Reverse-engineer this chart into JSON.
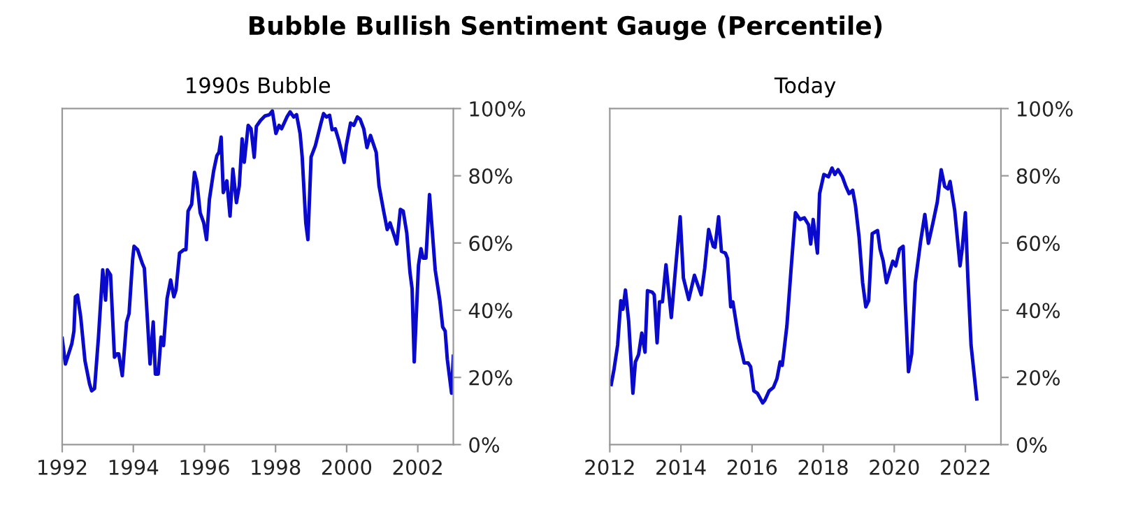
{
  "chart_data": [
    {
      "type": "line",
      "title": "Bubble Bullish Sentiment Gauge (Percentile)",
      "subtitle": "1990s Bubble",
      "xlim": [
        1992,
        2003
      ],
      "xticks": [
        1992,
        1994,
        1996,
        1998,
        2000,
        2002
      ],
      "ylim": [
        0,
        100
      ],
      "yticks": [
        {
          "value": 0,
          "label": "0%"
        },
        {
          "value": 20,
          "label": "20%"
        },
        {
          "value": 40,
          "label": "40%"
        },
        {
          "value": 60,
          "label": "60%"
        },
        {
          "value": 80,
          "label": "80%"
        },
        {
          "value": 100,
          "label": "100%"
        }
      ],
      "grid": false,
      "marker": "none",
      "line_style": "solid",
      "series": [
        {
          "color": "#0a0acc",
          "x": [
            1992.0,
            1992.09,
            1992.27,
            1992.33,
            1992.37,
            1992.43,
            1992.52,
            1992.64,
            1992.77,
            1992.83,
            1992.91,
            1993.02,
            1993.14,
            1993.22,
            1993.27,
            1993.36,
            1993.47,
            1993.54,
            1993.59,
            1993.69,
            1993.81,
            1993.88,
            1993.98,
            1994.02,
            1994.12,
            1994.25,
            1994.31,
            1994.37,
            1994.47,
            1994.56,
            1994.62,
            1994.7,
            1994.78,
            1994.85,
            1994.95,
            1995.05,
            1995.14,
            1995.2,
            1995.3,
            1995.42,
            1995.48,
            1995.54,
            1995.64,
            1995.72,
            1995.79,
            1995.88,
            1995.98,
            1996.06,
            1996.14,
            1996.26,
            1996.35,
            1996.41,
            1996.47,
            1996.53,
            1996.63,
            1996.72,
            1996.8,
            1996.9,
            1996.98,
            1997.06,
            1997.12,
            1997.23,
            1997.31,
            1997.4,
            1997.46,
            1997.58,
            1997.7,
            1997.83,
            1997.91,
            1998.01,
            1998.1,
            1998.17,
            1998.32,
            1998.41,
            1998.51,
            1998.59,
            1998.69,
            1998.75,
            1998.85,
            1998.91,
            1999.0,
            1999.12,
            1999.27,
            1999.35,
            1999.43,
            1999.52,
            1999.59,
            1999.68,
            1999.78,
            1999.93,
            1999.99,
            2000.11,
            2000.2,
            2000.3,
            2000.38,
            2000.48,
            2000.57,
            2000.67,
            2000.83,
            2000.91,
            2001.04,
            2001.14,
            2001.22,
            2001.35,
            2001.41,
            2001.51,
            2001.59,
            2001.69,
            2001.78,
            2001.84,
            2001.9,
            2002.02,
            2002.09,
            2002.15,
            2002.23,
            2002.33,
            2002.49,
            2002.62,
            2002.7,
            2002.77,
            2002.83,
            2002.95,
            2003.0
          ],
          "values": [
            31.6,
            24,
            30,
            33.8,
            44,
            44.5,
            38,
            25,
            18,
            16,
            16.7,
            32,
            52,
            43,
            52,
            50.5,
            26,
            27,
            27,
            20.5,
            36.5,
            39,
            55,
            59,
            58,
            54,
            52.5,
            42,
            24,
            36.5,
            21,
            21,
            32,
            29.5,
            43.5,
            49,
            44,
            46,
            57,
            58,
            58,
            69.5,
            71.5,
            81,
            78,
            69,
            66,
            61,
            73,
            81.5,
            86,
            87,
            91.5,
            75,
            78.5,
            68,
            82,
            72,
            77,
            91,
            84,
            95,
            94,
            85.5,
            94.7,
            96.5,
            97.8,
            98.2,
            99.3,
            92.6,
            95,
            94,
            97.5,
            99,
            97.5,
            98.2,
            92.6,
            85.5,
            66,
            61,
            85.6,
            89,
            95.4,
            98.5,
            97.5,
            98,
            93.7,
            94,
            90.5,
            84,
            89,
            95.7,
            95,
            97.5,
            96.8,
            94,
            88.4,
            92,
            87,
            77,
            69.5,
            64,
            66,
            61.8,
            59.7,
            70,
            69.5,
            63,
            51.3,
            46.4,
            24.6,
            53.4,
            58.3,
            55.5,
            55.5,
            74.4,
            52,
            42.9,
            35,
            33.8,
            25.4,
            15.3,
            26.3
          ]
        }
      ]
    },
    {
      "type": "line",
      "subtitle": "Today",
      "xlim": [
        2012,
        2023
      ],
      "xticks": [
        2012,
        2014,
        2016,
        2018,
        2020,
        2022
      ],
      "ylim": [
        0,
        100
      ],
      "yticks": [
        {
          "value": 0,
          "label": "0%"
        },
        {
          "value": 20,
          "label": "20%"
        },
        {
          "value": 40,
          "label": "40%"
        },
        {
          "value": 60,
          "label": "60%"
        },
        {
          "value": 80,
          "label": "80%"
        },
        {
          "value": 100,
          "label": "100%"
        }
      ],
      "grid": false,
      "marker": "none",
      "line_style": "solid",
      "series": [
        {
          "color": "#0a0acc",
          "x": [
            2012.04,
            2012.12,
            2012.22,
            2012.31,
            2012.37,
            2012.44,
            2012.53,
            2012.65,
            2012.72,
            2012.81,
            2012.9,
            2012.99,
            2013.06,
            2013.19,
            2013.25,
            2013.33,
            2013.4,
            2013.48,
            2013.58,
            2013.73,
            2013.85,
            2013.98,
            2014.07,
            2014.22,
            2014.38,
            2014.57,
            2014.67,
            2014.78,
            2014.91,
            2014.96,
            2015.06,
            2015.14,
            2015.25,
            2015.31,
            2015.4,
            2015.46,
            2015.62,
            2015.78,
            2015.89,
            2015.96,
            2016.05,
            2016.15,
            2016.3,
            2016.36,
            2016.48,
            2016.6,
            2016.7,
            2016.79,
            2016.85,
            2016.98,
            2017.1,
            2017.22,
            2017.35,
            2017.47,
            2017.59,
            2017.65,
            2017.72,
            2017.84,
            2017.9,
            2018.02,
            2018.15,
            2018.25,
            2018.33,
            2018.42,
            2018.54,
            2018.64,
            2018.73,
            2018.83,
            2018.91,
            2019.01,
            2019.11,
            2019.2,
            2019.28,
            2019.38,
            2019.53,
            2019.6,
            2019.69,
            2019.78,
            2019.88,
            2019.96,
            2020.04,
            2020.15,
            2020.25,
            2020.31,
            2020.4,
            2020.49,
            2020.59,
            2020.74,
            2020.86,
            2020.96,
            2021.09,
            2021.21,
            2021.32,
            2021.42,
            2021.51,
            2021.57,
            2021.7,
            2021.85,
            2021.91,
            2022.0,
            2022.07,
            2022.16,
            2022.32
          ],
          "values": [
            17.9,
            22.5,
            29.6,
            42.8,
            40.3,
            46,
            36.8,
            15.3,
            24.6,
            26.8,
            33.2,
            27.5,
            45.8,
            45.4,
            44.6,
            30.3,
            42.5,
            42.5,
            53.5,
            37.8,
            52.5,
            67.8,
            49.6,
            43.2,
            50.4,
            44.6,
            52.5,
            64,
            59,
            58.7,
            67.8,
            57.5,
            57,
            55.4,
            41,
            42.5,
            31.8,
            24.3,
            24.3,
            23.2,
            16,
            15.3,
            12.4,
            13.2,
            16,
            17,
            19.6,
            24.6,
            23.6,
            35.3,
            52.5,
            69,
            67,
            67.5,
            65.4,
            59.7,
            67,
            57,
            74.7,
            80.4,
            79.7,
            82.3,
            80.4,
            81.8,
            79.7,
            76.8,
            74.7,
            75.7,
            71.1,
            61.8,
            48.2,
            41,
            42.8,
            62.8,
            63.7,
            58.2,
            54.6,
            48.2,
            51.8,
            54.6,
            53.2,
            58.2,
            59,
            42.5,
            21.7,
            27,
            48.2,
            60.4,
            68.5,
            59.9,
            66.1,
            72.2,
            81.8,
            76.8,
            76.1,
            78.3,
            69.7,
            53.2,
            58.2,
            69,
            49.6,
            29.6,
            13.6
          ]
        }
      ]
    }
  ]
}
